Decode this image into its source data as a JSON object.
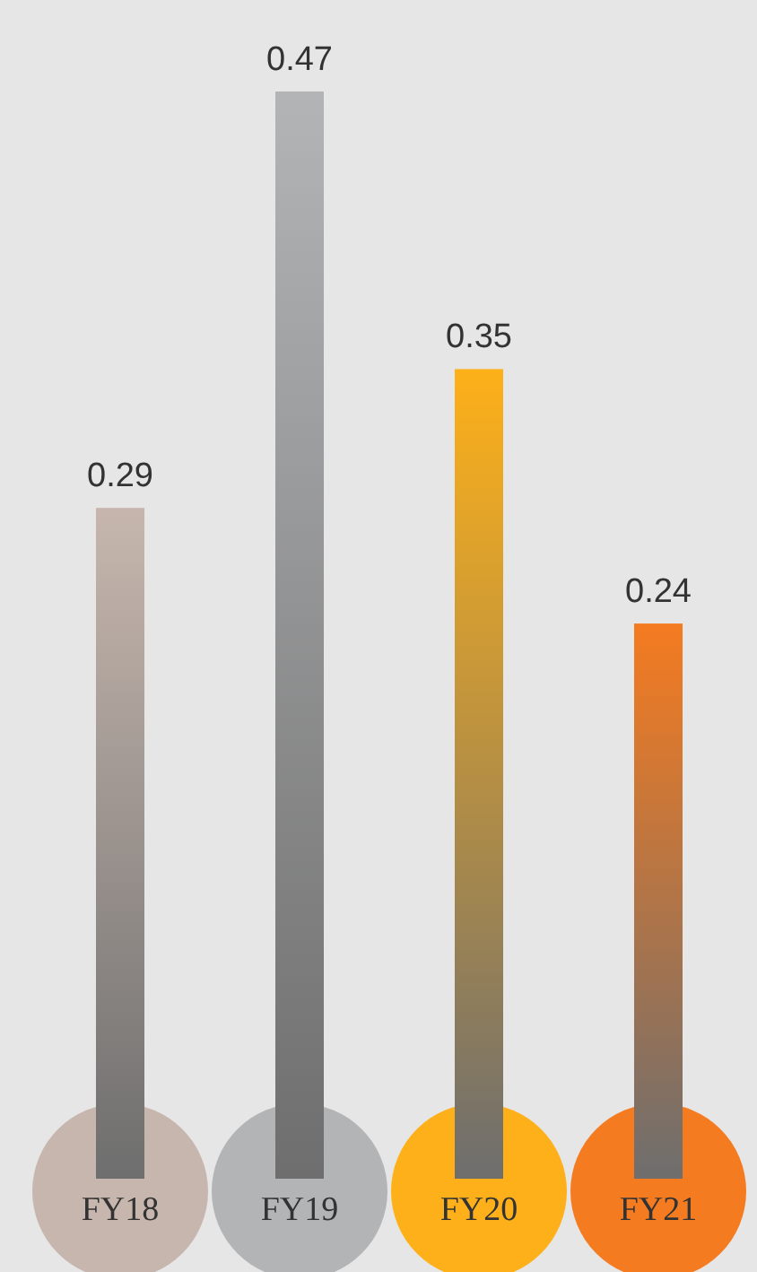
{
  "chart_data": {
    "type": "bar",
    "categories": [
      "FY18",
      "FY19",
      "FY20",
      "FY21"
    ],
    "values": [
      0.29,
      0.47,
      0.35,
      0.24
    ],
    "colors": [
      "#c6b6ad",
      "#b3b4b6",
      "#fdb019",
      "#f47b20"
    ],
    "data_labels": true
  }
}
